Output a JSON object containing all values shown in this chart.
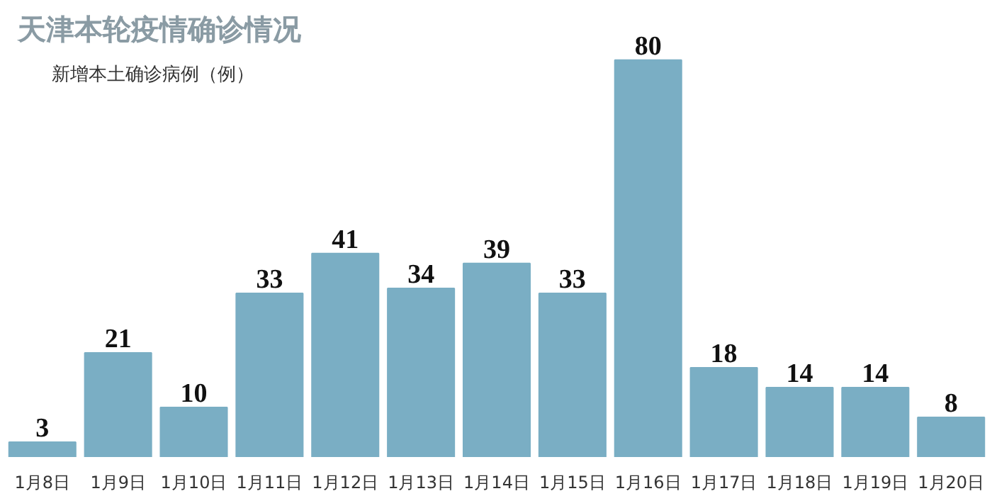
{
  "chart_data": {
    "type": "bar",
    "title": "天津本轮疫情确诊情况",
    "subtitle": "新增本土确诊病例（例）",
    "categories": [
      "1月8日",
      "1月9日",
      "1月10日",
      "1月11日",
      "1月12日",
      "1月13日",
      "1月14日",
      "1月15日",
      "1月16日",
      "1月17日",
      "1月18日",
      "1月19日",
      "1月20日"
    ],
    "values": [
      3,
      21,
      10,
      33,
      41,
      34,
      39,
      33,
      80,
      18,
      14,
      14,
      8
    ],
    "color": "#7aaec4",
    "data_labels": true
  }
}
